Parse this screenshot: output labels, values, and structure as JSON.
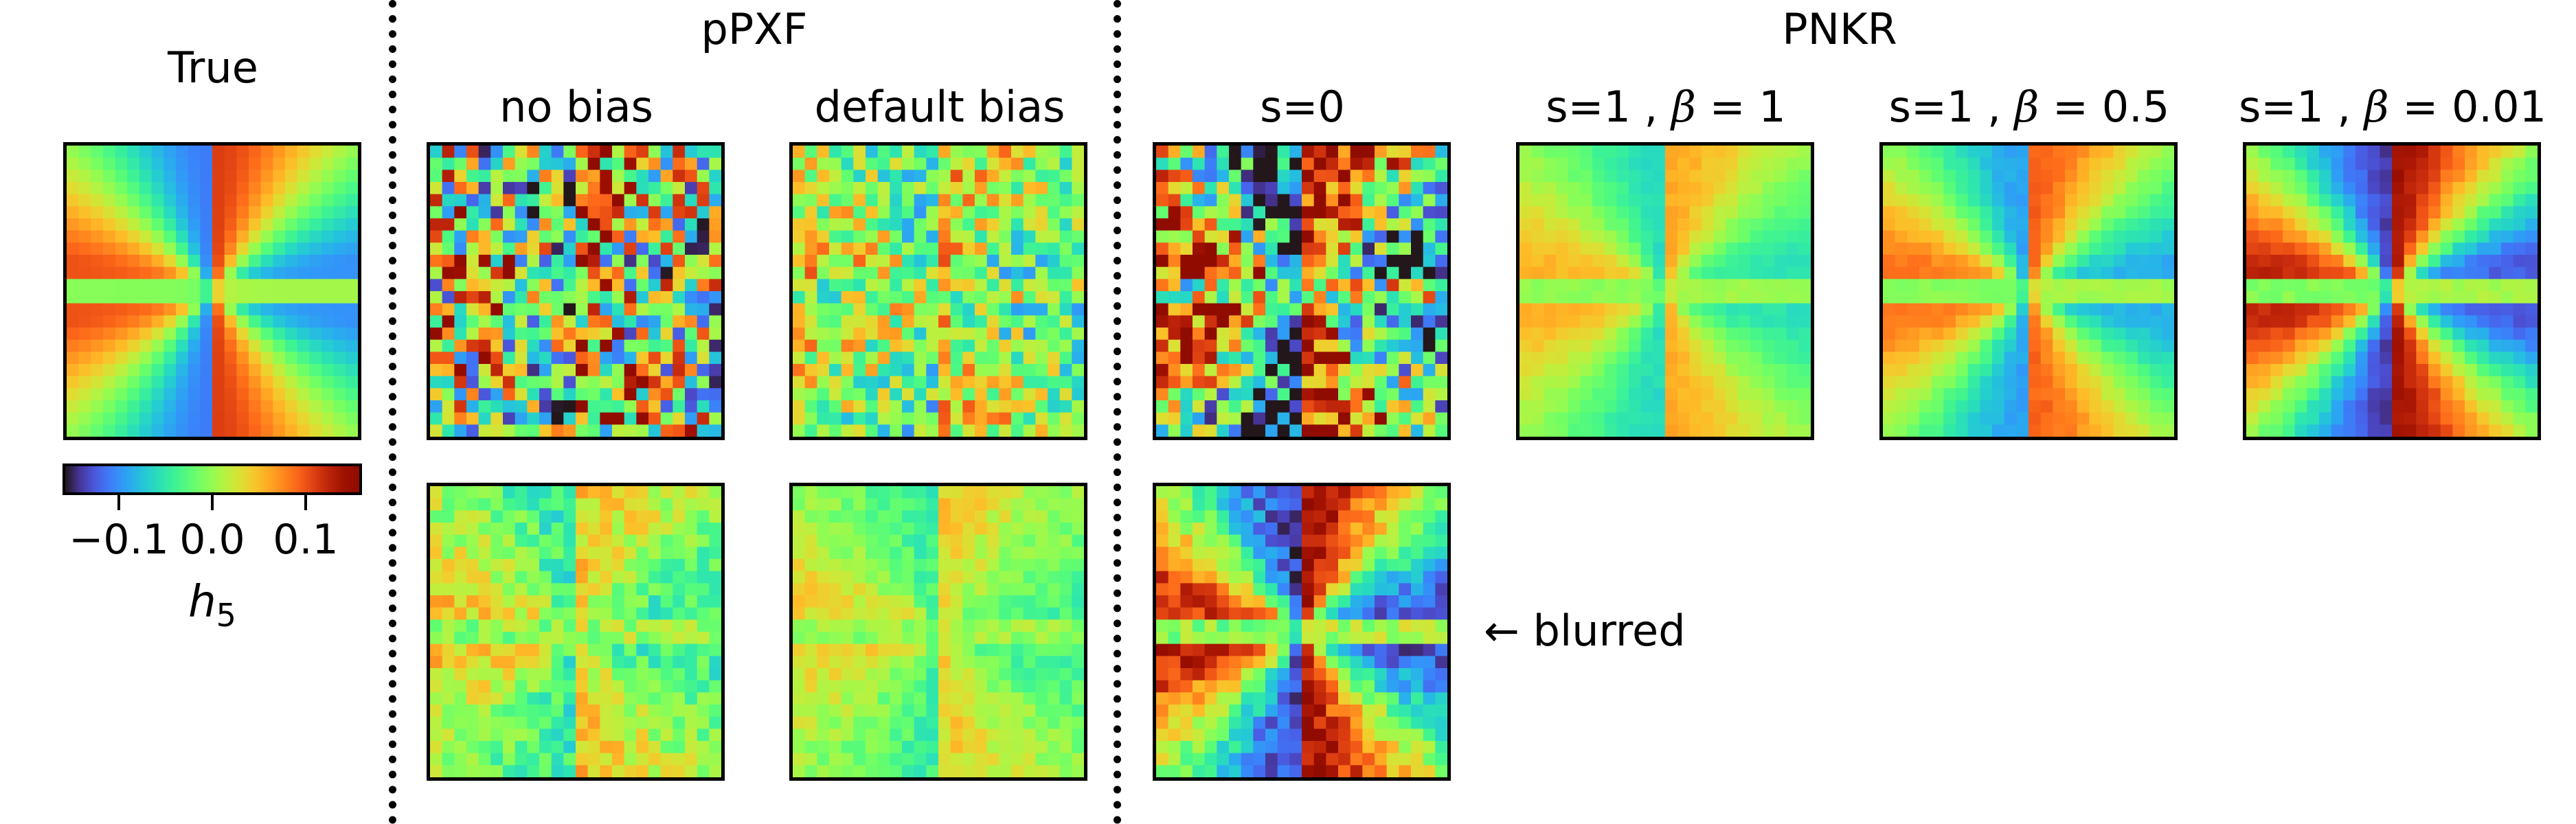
{
  "chart_data": {
    "type": "heatmap",
    "groups": [
      {
        "label": "pPXF"
      },
      {
        "label": "PNKR"
      }
    ],
    "column_titles": {
      "true": "True",
      "ppxf_no_bias": "no bias",
      "ppxf_default_bias": "default bias",
      "pnkr_s0": "s=0",
      "pnkr_s1_b1": "s=1 , β = 1",
      "pnkr_s1_b05": "s=1 , β = 0.5",
      "pnkr_s1_b001": "s=1 , β = 0.01"
    },
    "pnkr_titles": [
      {
        "prefix": "s=1 , ",
        "beta": "β",
        "suffix": " = 1"
      },
      {
        "prefix": "s=1 , ",
        "beta": "β",
        "suffix": " = 0.5"
      },
      {
        "prefix": "s=1 , ",
        "beta": "β",
        "suffix": " = 0.01"
      }
    ],
    "row_annotation": "← blurred",
    "colorbar": {
      "label": "h",
      "label_subscript": "5",
      "range": [
        -0.17,
        0.17
      ],
      "ticks": [
        {
          "value": -0.1,
          "label": "−0.1"
        },
        {
          "value": 0.0,
          "label": "0.0"
        },
        {
          "value": 0.1,
          "label": "0.1"
        }
      ],
      "colormap": "turbo"
    },
    "map_grid": [
      24,
      24
    ],
    "panels": [
      {
        "id": "true",
        "pattern": "hourglass",
        "amp": 1.0,
        "noise": 0.0
      },
      {
        "id": "ppxf_no_bias",
        "pattern": "hourglass",
        "amp": 0.45,
        "noise": 0.9
      },
      {
        "id": "ppxf_default_bias",
        "pattern": "hourglass",
        "amp": 0.35,
        "noise": 0.45
      },
      {
        "id": "pnkr_s0",
        "pattern": "hourglass",
        "amp": 1.3,
        "noise": 0.7
      },
      {
        "id": "pnkr_s1_b1",
        "pattern": "hourglass",
        "amp": 0.55,
        "noise": 0.04
      },
      {
        "id": "pnkr_s1_b05",
        "pattern": "hourglass",
        "amp": 0.85,
        "noise": 0.04
      },
      {
        "id": "pnkr_s1_b001",
        "pattern": "hourglass",
        "amp": 1.25,
        "noise": 0.05
      },
      {
        "id": "ppxf_no_bias_blurred",
        "pattern": "hourglass",
        "amp": 0.4,
        "noise": 0.2
      },
      {
        "id": "ppxf_default_bias_blurred",
        "pattern": "hourglass",
        "amp": 0.35,
        "noise": 0.12
      },
      {
        "id": "pnkr_s0_blurred",
        "pattern": "hourglass",
        "amp": 1.25,
        "noise": 0.18
      }
    ]
  }
}
